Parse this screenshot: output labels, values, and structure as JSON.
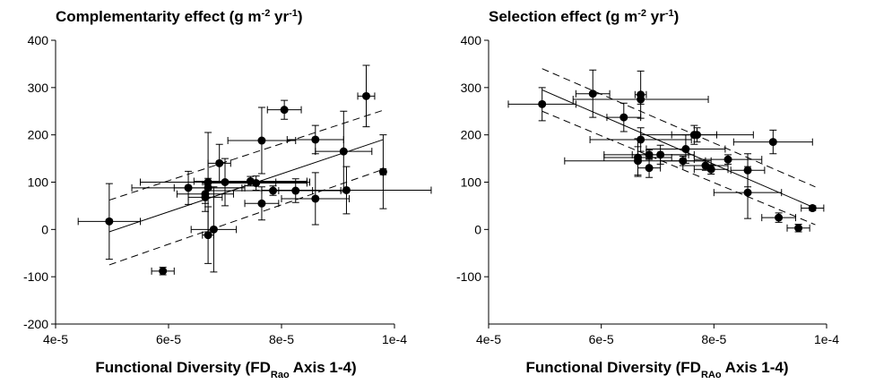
{
  "chart_data": [
    {
      "type": "scatter",
      "title": [
        "Complementarity effect (g m",
        "-2",
        " yr",
        "-1",
        ")"
      ],
      "x_label": [
        "Functional Diversity (FD",
        "Rao",
        " Axis 1-4)"
      ],
      "xlim": [
        4e-05,
        0.0001
      ],
      "xticks": [
        {
          "value": 4e-05,
          "label": "4e-5"
        },
        {
          "value": 6e-05,
          "label": "6e-5"
        },
        {
          "value": 8e-05,
          "label": "8e-5"
        },
        {
          "value": 0.0001,
          "label": "1e-4"
        }
      ],
      "ylim": [
        -200,
        400
      ],
      "yticks": [
        -200,
        -100,
        0,
        100,
        200,
        300,
        400
      ],
      "color": "#000000",
      "x": [
        4.95e-05,
        5.9e-05,
        6.35e-05,
        6.65e-05,
        6.65e-05,
        6.7e-05,
        6.7e-05,
        6.7e-05,
        6.8e-05,
        6.9e-05,
        7e-05,
        7.45e-05,
        7.55e-05,
        7.65e-05,
        7.65e-05,
        7.85e-05,
        8.05e-05,
        8.25e-05,
        8.6e-05,
        8.6e-05,
        9.1e-05,
        9.15e-05,
        9.5e-05,
        9.8e-05
      ],
      "values": [
        17,
        -88,
        88,
        75,
        68,
        100,
        -12,
        88,
        0,
        140,
        100,
        102,
        98,
        188,
        55,
        82,
        253,
        82,
        190,
        65,
        165,
        83,
        282,
        122
      ],
      "x_err": [
        5.5e-06,
        2e-06,
        1e-05,
        5e-06,
        3e-06,
        1.2e-05,
        1e-06,
        6e-06,
        4e-06,
        2e-06,
        1.5e-05,
        1e-05,
        9e-06,
        6e-06,
        3e-06,
        1.2e-05,
        3e-06,
        3e-06,
        5e-06,
        6e-06,
        5e-06,
        1.5e-05,
        1.5e-06,
        5e-07
      ],
      "y_err": [
        80,
        8,
        35,
        20,
        30,
        105,
        60,
        20,
        90,
        40,
        50,
        10,
        15,
        70,
        35,
        10,
        20,
        25,
        30,
        55,
        85,
        50,
        65,
        78
      ],
      "fit": {
        "x": [
          4.95e-05,
          9.8e-05
        ],
        "y": [
          -5,
          190
        ]
      },
      "ci_upper": {
        "x": [
          4.95e-05,
          9.8e-05
        ],
        "y": [
          62,
          252
        ]
      },
      "ci_lower": {
        "x": [
          4.95e-05,
          9.8e-05
        ],
        "y": [
          -75,
          127
        ]
      }
    },
    {
      "type": "scatter",
      "title": [
        "Selection effect (g m",
        "-2",
        " yr",
        "-1",
        ")"
      ],
      "x_label": [
        "Functional Diversity (FD",
        "RAo",
        " Axis 1-4)"
      ],
      "xlim": [
        4e-05,
        0.0001
      ],
      "xticks": [
        {
          "value": 4e-05,
          "label": "4e-5"
        },
        {
          "value": 6e-05,
          "label": "6e-5"
        },
        {
          "value": 8e-05,
          "label": "8e-5"
        },
        {
          "value": 0.0001,
          "label": "1e-4"
        }
      ],
      "ylim": [
        -200,
        400
      ],
      "yticks": [
        -100,
        0,
        100,
        200,
        300,
        400
      ],
      "color": "#000000",
      "x": [
        4.95e-05,
        5.85e-05,
        6.4e-05,
        6.7e-05,
        6.7e-05,
        6.7e-05,
        6.65e-05,
        6.65e-05,
        6.85e-05,
        6.85e-05,
        7.05e-05,
        7.45e-05,
        7.5e-05,
        7.65e-05,
        7.7e-05,
        7.85e-05,
        7.95e-05,
        8.25e-05,
        8.6e-05,
        8.6e-05,
        9.05e-05,
        9.15e-05,
        9.5e-05,
        9.75e-05
      ],
      "values": [
        265,
        287,
        237,
        285,
        275,
        190,
        152,
        145,
        130,
        158,
        158,
        145,
        170,
        200,
        200,
        135,
        127,
        148,
        125,
        78,
        185,
        25,
        3,
        45
      ],
      "x_err": [
        6e-06,
        3e-06,
        3e-06,
        1e-06,
        1.2e-05,
        9e-06,
        6e-06,
        1.3e-05,
        2e-06,
        8e-06,
        5e-06,
        4e-06,
        7e-06,
        4e-06,
        1e-05,
        4e-06,
        3e-06,
        6e-06,
        3e-06,
        6e-06,
        7e-06,
        3e-06,
        2e-06,
        2e-06
      ],
      "y_err": [
        35,
        50,
        30,
        50,
        10,
        25,
        40,
        30,
        20,
        10,
        20,
        10,
        30,
        20,
        15,
        10,
        10,
        10,
        35,
        55,
        25,
        10,
        8,
        5
      ],
      "fit": {
        "x": [
          4.95e-05,
          9.8e-05
        ],
        "y": [
          295,
          45
        ]
      },
      "ci_upper": {
        "x": [
          4.95e-05,
          9.8e-05
        ],
        "y": [
          340,
          90
        ]
      },
      "ci_lower": {
        "x": [
          4.95e-05,
          9.8e-05
        ],
        "y": [
          250,
          10
        ]
      }
    }
  ]
}
